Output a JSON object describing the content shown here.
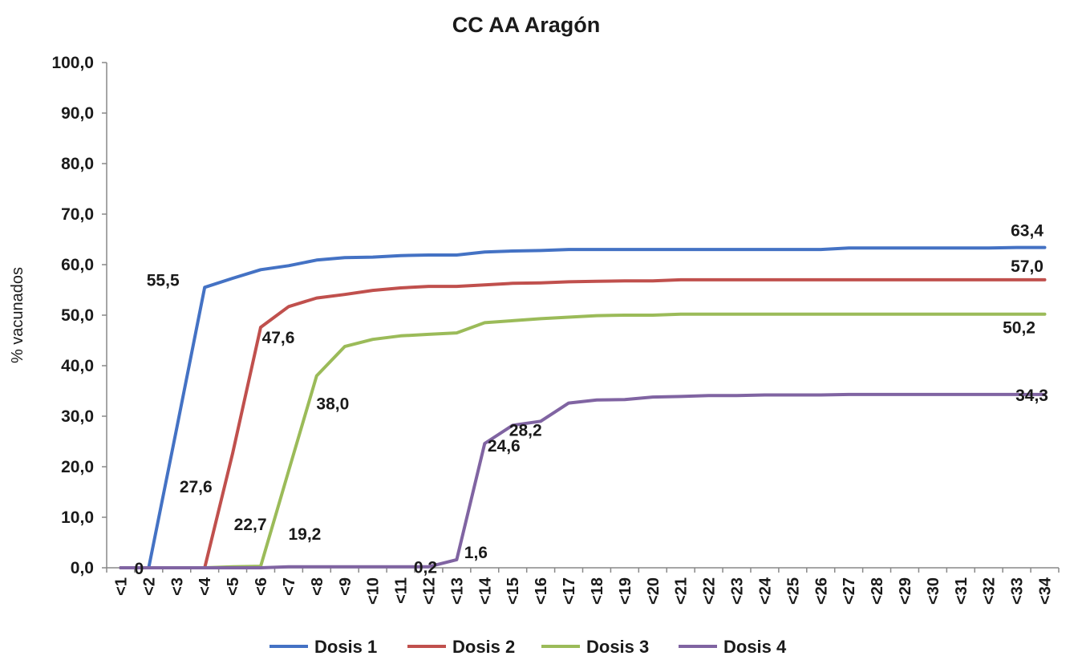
{
  "chart_data": {
    "type": "line",
    "title": "CC AA Aragón",
    "ylabel": "% vacunados",
    "xlabel": "",
    "ylim": [
      0,
      100
    ],
    "yticks": [
      "0,0",
      "10,0",
      "20,0",
      "30,0",
      "40,0",
      "50,0",
      "60,0",
      "70,0",
      "80,0",
      "90,0",
      "100,0"
    ],
    "categories": [
      "<1",
      "<2",
      "<3",
      "<4",
      "<5",
      "<6",
      "<7",
      "<8",
      "<9",
      "<10",
      "<11",
      "<12",
      "<13",
      "<14",
      "<15",
      "<16",
      "<17",
      "<18",
      "<19",
      "<20",
      "<21",
      "<22",
      "<23",
      "<24",
      "<25",
      "<26",
      "<27",
      "<28",
      "<29",
      "<30",
      "<31",
      "<32",
      "<33",
      "<34"
    ],
    "grid": false,
    "legend_position": "bottom",
    "series": [
      {
        "name": "Dosis 1",
        "color": "#4472c4",
        "values": [
          0,
          0,
          27.6,
          55.5,
          57.3,
          59.0,
          59.8,
          60.9,
          61.4,
          61.5,
          61.8,
          61.9,
          61.9,
          62.5,
          62.7,
          62.8,
          63.0,
          63.0,
          63.0,
          63.0,
          63.0,
          63.0,
          63.0,
          63.0,
          63.0,
          63.0,
          63.3,
          63.3,
          63.3,
          63.3,
          63.3,
          63.3,
          63.4,
          63.4
        ]
      },
      {
        "name": "Dosis 2",
        "color": "#c0504d",
        "values": [
          0,
          0,
          0,
          0,
          22.7,
          47.6,
          51.7,
          53.4,
          54.1,
          54.9,
          55.4,
          55.7,
          55.7,
          56.0,
          56.3,
          56.4,
          56.6,
          56.7,
          56.8,
          56.8,
          57.0,
          57.0,
          57.0,
          57.0,
          57.0,
          57.0,
          57.0,
          57.0,
          57.0,
          57.0,
          57.0,
          57.0,
          57.0,
          57.0
        ]
      },
      {
        "name": "Dosis 3",
        "color": "#9bbb59",
        "values": [
          0,
          0,
          0,
          0,
          0.2,
          0.3,
          19.2,
          38.0,
          43.8,
          45.2,
          45.9,
          46.2,
          46.5,
          48.5,
          48.9,
          49.3,
          49.6,
          49.9,
          50.0,
          50.0,
          50.2,
          50.2,
          50.2,
          50.2,
          50.2,
          50.2,
          50.2,
          50.2,
          50.2,
          50.2,
          50.2,
          50.2,
          50.2,
          50.2
        ]
      },
      {
        "name": "Dosis 4",
        "color": "#8064a2",
        "values": [
          0,
          0,
          0,
          0,
          0,
          0,
          0.2,
          0.2,
          0.2,
          0.2,
          0.2,
          0.2,
          1.6,
          24.6,
          28.2,
          29.0,
          32.6,
          33.2,
          33.3,
          33.8,
          33.9,
          34.1,
          34.1,
          34.2,
          34.2,
          34.2,
          34.3,
          34.3,
          34.3,
          34.3,
          34.3,
          34.3,
          34.3,
          34.3
        ]
      }
    ],
    "data_labels": [
      {
        "text": "0",
        "series": 0,
        "index": 1,
        "dx": -12,
        "dy": 8
      },
      {
        "text": "27,6",
        "series": 0,
        "index": 2,
        "dx": 24,
        "dy": 80
      },
      {
        "text": "55,5",
        "series": 0,
        "index": 3,
        "dx": -52,
        "dy": -2
      },
      {
        "text": "63,4",
        "series": 0,
        "index": 33,
        "dx": -22,
        "dy": -14
      },
      {
        "text": "22,7",
        "series": 1,
        "index": 4,
        "dx": 22,
        "dy": 96
      },
      {
        "text": "47,6",
        "series": 1,
        "index": 5,
        "dx": 22,
        "dy": 20
      },
      {
        "text": "57,0",
        "series": 1,
        "index": 33,
        "dx": -22,
        "dy": -10
      },
      {
        "text": "19,2",
        "series": 2,
        "index": 6,
        "dx": 20,
        "dy": 86
      },
      {
        "text": "38,0",
        "series": 2,
        "index": 7,
        "dx": 20,
        "dy": 42
      },
      {
        "text": "50,2",
        "series": 2,
        "index": 33,
        "dx": -32,
        "dy": 24
      },
      {
        "text": "0,2",
        "series": 3,
        "index": 11,
        "dx": -4,
        "dy": 8
      },
      {
        "text": "1,6",
        "series": 3,
        "index": 12,
        "dx": 24,
        "dy": -2
      },
      {
        "text": "24,6",
        "series": 3,
        "index": 13,
        "dx": 24,
        "dy": 10
      },
      {
        "text": "28,2",
        "series": 3,
        "index": 14,
        "dx": 16,
        "dy": 13
      },
      {
        "text": "34,3",
        "series": 3,
        "index": 33,
        "dx": -16,
        "dy": 8
      }
    ]
  }
}
